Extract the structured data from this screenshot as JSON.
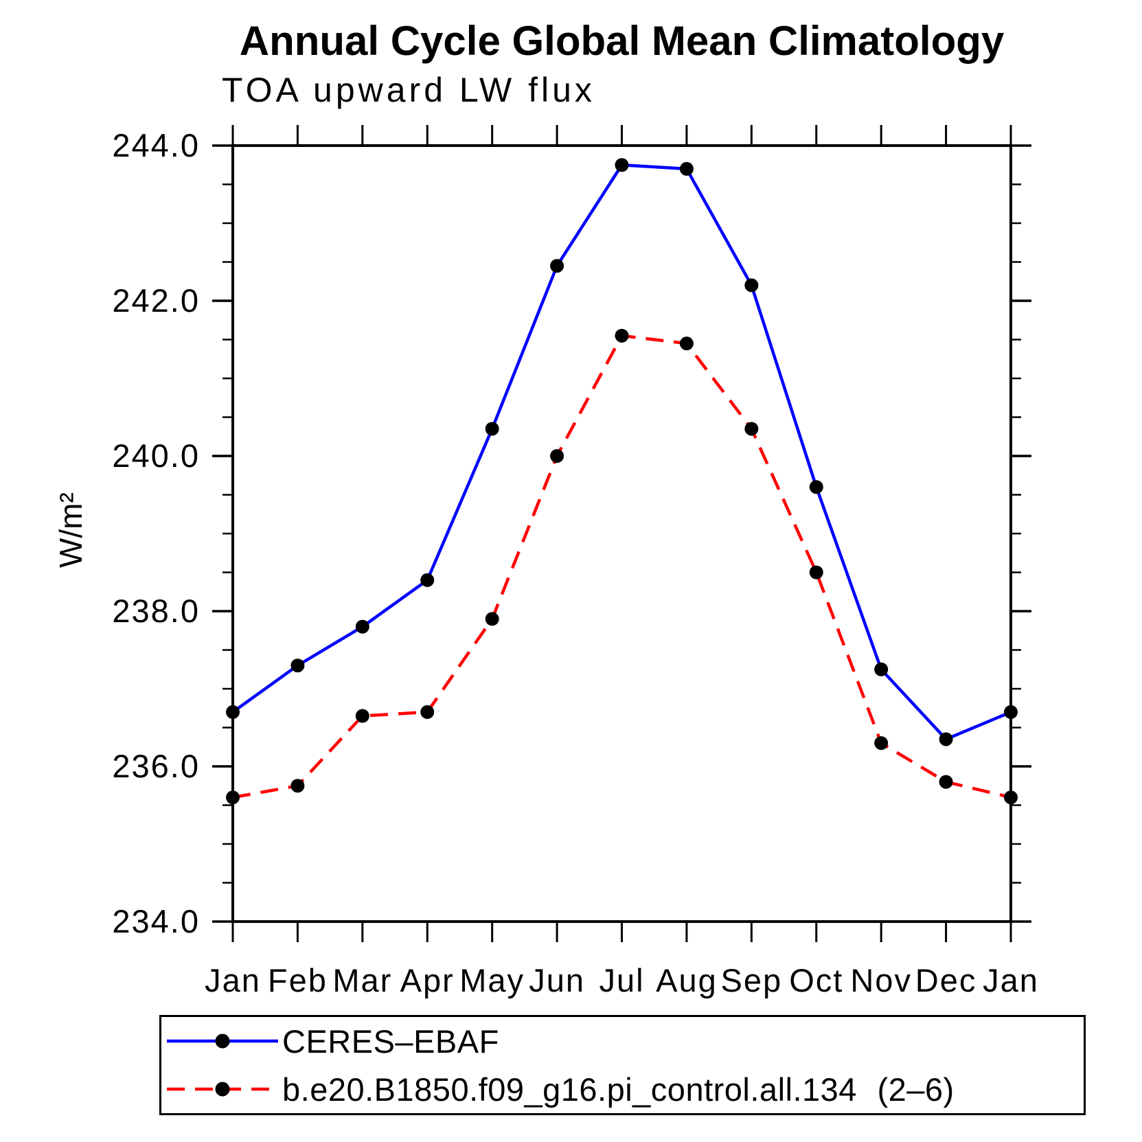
{
  "title": "Annual Cycle Global Mean Climatology",
  "subtitle": "TOA upward LW flux",
  "chart_data": {
    "type": "line",
    "title": "Annual Cycle Global Mean Climatology",
    "subtitle": "TOA upward LW flux",
    "x_categories": [
      "Jan",
      "Feb",
      "Mar",
      "Apr",
      "May",
      "Jun",
      "Jul",
      "Aug",
      "Sep",
      "Oct",
      "Nov",
      "Dec",
      "Jan"
    ],
    "ylabel": "W/m²",
    "xlabel": "",
    "ylim": [
      234.0,
      244.0
    ],
    "ytick_interval_major": 2.0,
    "ytick_interval_minor": 0.5,
    "ytick_labels": [
      "244.0",
      "242.0",
      "240.0",
      "238.0",
      "236.0",
      "234.0"
    ],
    "grid": false,
    "legend_position": "bottom",
    "background_color": "#ffffff",
    "axis_color": "#000000",
    "series": [
      {
        "name": "CERES–EBAF",
        "color": "#0000ff",
        "style": "solid",
        "marker": "filled-circle",
        "marker_color": "#000000",
        "values": [
          236.7,
          237.3,
          237.8,
          238.4,
          240.35,
          242.45,
          243.75,
          243.7,
          242.2,
          239.6,
          237.25,
          236.35,
          236.7
        ]
      },
      {
        "name": "b.e20.B1850.f09_g16.pi_control.all.134 (2–6)",
        "color": "#ff0000",
        "style": "dashed",
        "marker": "filled-circle",
        "marker_color": "#000000",
        "values": [
          235.6,
          235.75,
          236.65,
          236.7,
          237.9,
          240.0,
          241.55,
          241.45,
          240.35,
          238.5,
          236.3,
          235.8,
          235.6
        ]
      }
    ]
  }
}
